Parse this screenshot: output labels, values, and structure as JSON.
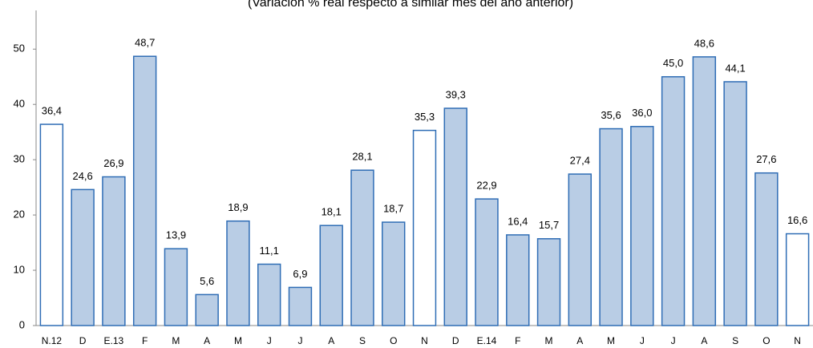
{
  "chart_data": {
    "type": "bar",
    "subtitle": "(Variación % real respecto a similar mes del año anterior)",
    "categories": [
      "N.12",
      "D",
      "E.13",
      "F",
      "M",
      "A",
      "M",
      "J",
      "J",
      "A",
      "S",
      "O",
      "N",
      "D",
      "E.14",
      "F",
      "M",
      "A",
      "M",
      "J",
      "J",
      "A",
      "S",
      "O",
      "N"
    ],
    "values": [
      36.4,
      24.6,
      26.9,
      48.7,
      13.9,
      5.6,
      18.9,
      11.1,
      6.9,
      18.1,
      28.1,
      18.7,
      35.3,
      39.3,
      22.9,
      16.4,
      15.7,
      27.4,
      35.6,
      36.0,
      45.0,
      48.6,
      44.1,
      27.6,
      16.6
    ],
    "value_labels": [
      "36,4",
      "24,6",
      "26,9",
      "48,7",
      "13,9",
      "5,6",
      "18,9",
      "11,1",
      "6,9",
      "18,1",
      "28,1",
      "18,7",
      "35,3",
      "39,3",
      "22,9",
      "16,4",
      "15,7",
      "27,4",
      "35,6",
      "36,0",
      "45,0",
      "48,6",
      "44,1",
      "27,6",
      "16,6"
    ],
    "colors": [
      "#ffffff",
      "#b9cde5",
      "#b9cde5",
      "#b9cde5",
      "#b9cde5",
      "#b9cde5",
      "#b9cde5",
      "#b9cde5",
      "#b9cde5",
      "#b9cde5",
      "#b9cde5",
      "#b9cde5",
      "#ffffff",
      "#b9cde5",
      "#b9cde5",
      "#b9cde5",
      "#b9cde5",
      "#b9cde5",
      "#b9cde5",
      "#b9cde5",
      "#b9cde5",
      "#b9cde5",
      "#b9cde5",
      "#b9cde5",
      "#ffffff"
    ],
    "edge_color": "#2f6db5",
    "ylim": [
      0,
      57
    ],
    "yticks": [
      0,
      10,
      20,
      30,
      40,
      50
    ],
    "grid": false
  }
}
